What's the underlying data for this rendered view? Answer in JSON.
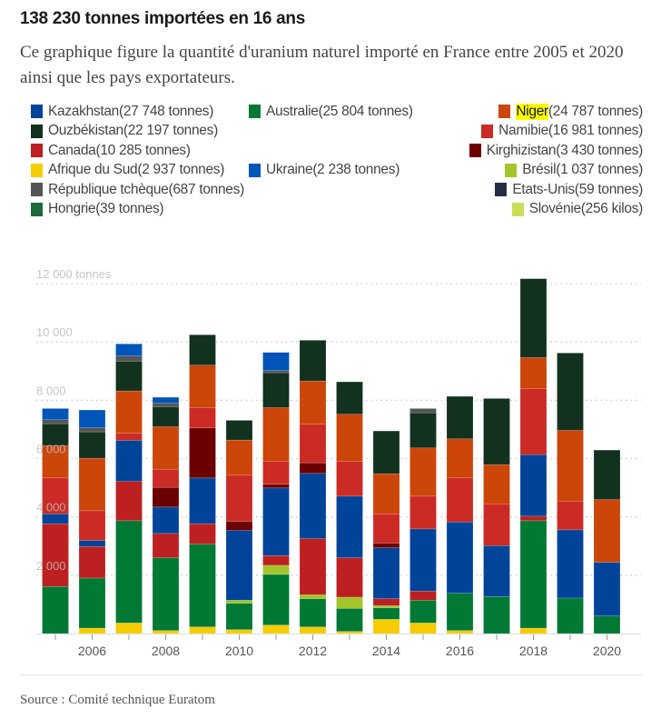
{
  "title": "138 230 tonnes importées en 16 ans",
  "subtitle": "Ce graphique figure la quantité d'uranium naturel importé en France entre 2005 et 2020 ainsi que les pays exportateurs.",
  "source": "Source : Comité technique Euratom",
  "legend": [
    {
      "name": "Kazakhstan",
      "qty": " (27 748 tonnes)",
      "color": "#00449a",
      "col": 1
    },
    {
      "name": "Australie",
      "qty": " (25 804 tonnes)",
      "color": "#007935",
      "col": 2
    },
    {
      "name": "Niger",
      "qty": " (24 787 tonnes)",
      "color": "#cc4509",
      "col": 3,
      "highlight": true
    },
    {
      "name": "Ouzbékistan",
      "qty": " (22 197 tonnes)",
      "color": "#12311f",
      "col": 1
    },
    {
      "name": "Namibie",
      "qty": " (16 981 tonnes)",
      "color": "#cc2a24",
      "col": 3
    },
    {
      "name": "Canada",
      "qty": " (10 285 tonnes)",
      "color": "#bd2020",
      "col": 1
    },
    {
      "name": "Kirghizistan",
      "qty": " (3 430 tonnes)",
      "color": "#6b0000",
      "col": 3
    },
    {
      "name": "Afrique du Sud",
      "qty": " (2 937 tonnes)",
      "color": "#f5cc00",
      "col": 1
    },
    {
      "name": "Ukraine",
      "qty": " (2 238 tonnes)",
      "color": "#0055b8",
      "col": 2
    },
    {
      "name": "Brésil",
      "qty": " (1 037 tonnes)",
      "color": "#a3c52a",
      "col": 3
    },
    {
      "name": "République tchèque",
      "qty": " (687 tonnes)",
      "color": "#555555",
      "col": 1
    },
    {
      "name": "Etats-Unis",
      "qty": " (59 tonnes)",
      "color": "#262e45",
      "col": 3
    },
    {
      "name": "Hongrie",
      "qty": " (39 tonnes)",
      "color": "#1d6b3c",
      "col": 1
    },
    {
      "name": "Slovénie",
      "qty": " (256 kilos)",
      "color": "#cddc5a",
      "col": 3
    }
  ],
  "chart_data": {
    "type": "bar",
    "stacked": true,
    "ylim": [
      0,
      12000
    ],
    "yticks": [
      {
        "value": 2000,
        "label": "2 000"
      },
      {
        "value": 4000,
        "label": "4 000"
      },
      {
        "value": 6000,
        "label": "6 000"
      },
      {
        "value": 8000,
        "label": "8 000"
      },
      {
        "value": 10000,
        "label": "10 000"
      },
      {
        "value": 12000,
        "label": "12 000 tonnes"
      }
    ],
    "grid": true,
    "categories": [
      "2005",
      "2006",
      "2007",
      "2008",
      "2009",
      "2010",
      "2011",
      "2012",
      "2013",
      "2014",
      "2015",
      "2016",
      "2017",
      "2018",
      "2019",
      "2020"
    ],
    "xtick_labels": [
      "",
      "2006",
      "",
      "2008",
      "",
      "2010",
      "",
      "2012",
      "",
      "2014",
      "",
      "2016",
      "",
      "2018",
      "",
      "2020"
    ],
    "series": [
      {
        "name": "Afrique du Sud",
        "color": "#f5cc00",
        "values": [
          0,
          187,
          364,
          104,
          229,
          135,
          291,
          229,
          73,
          489,
          364,
          104,
          0,
          187,
          0,
          0
        ]
      },
      {
        "name": "Australie",
        "color": "#007935",
        "values": [
          1612,
          1716,
          3505,
          2496,
          2839,
          905,
          1737,
          967,
          790,
          395,
          780,
          1279,
          1269,
          3682,
          1217,
          603
        ]
      },
      {
        "name": "Brésil",
        "color": "#a3c52a",
        "values": [
          0,
          0,
          0,
          0,
          0,
          104,
          312,
          135,
          385,
          73,
          0,
          0,
          0,
          0,
          0,
          0
        ]
      },
      {
        "name": "Canada",
        "color": "#bd2020",
        "values": [
          2153,
          1082,
          1352,
          832,
          697,
          0,
          333,
          1924,
          1352,
          239,
          312,
          0,
          0,
          156,
          0,
          0
        ]
      },
      {
        "name": "Kazakhstan",
        "color": "#00449a",
        "values": [
          343,
          208,
          1404,
          905,
          1570,
          2392,
          2319,
          2236,
          2111,
          1747,
          2132,
          2444,
          1747,
          2111,
          2340,
          1841
        ]
      },
      {
        "name": "Kirghizistan",
        "color": "#6b0000",
        "values": [
          0,
          0,
          0,
          676,
          1716,
          312,
          125,
          364,
          0,
          156,
          0,
          0,
          0,
          0,
          0,
          0
        ]
      },
      {
        "name": "Namibie",
        "color": "#cc2a24",
        "values": [
          1227,
          1019,
          239,
          624,
          697,
          1581,
          790,
          1321,
          1196,
          1009,
          1123,
          1508,
          1425,
          2267,
          988,
          0
        ]
      },
      {
        "name": "Niger",
        "color": "#cc4509",
        "values": [
          1113,
          1800,
          1456,
          1456,
          1456,
          1206,
          1841,
          1487,
          1612,
          1373,
          1654,
          1342,
          1352,
          1061,
          2423,
          2153
        ]
      },
      {
        "name": "Ouzbékistan",
        "color": "#12311f",
        "values": [
          749,
          905,
          1019,
          686,
          1040,
          676,
          1196,
          1394,
          1113,
          1466,
          1206,
          1456,
          2267,
          2704,
          2652,
          1695
        ]
      },
      {
        "name": "République tchèque",
        "color": "#555555",
        "values": [
          135,
          135,
          177,
          125,
          0,
          0,
          73,
          0,
          0,
          0,
          146,
          0,
          0,
          0,
          0,
          0
        ]
      },
      {
        "name": "Ukraine",
        "color": "#0055b8",
        "values": [
          385,
          614,
          416,
          198,
          0,
          0,
          624,
          0,
          0,
          0,
          0,
          0,
          0,
          0,
          0,
          0
        ]
      }
    ]
  }
}
